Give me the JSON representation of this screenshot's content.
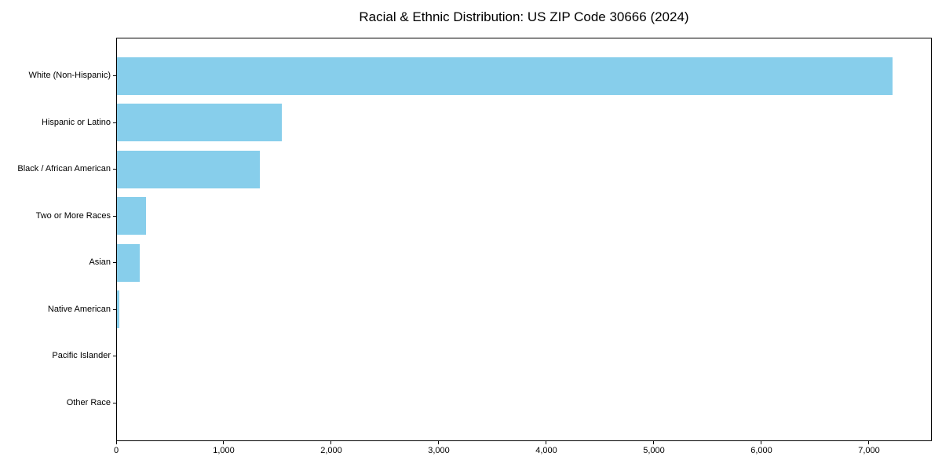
{
  "title": "Racial & Ethnic Distribution: US ZIP Code 30666 (2024)",
  "colors": {
    "bar": "#87CEEB",
    "background": "#FFFFFF",
    "spine": "#000000",
    "text": "#000000"
  },
  "chart_data": {
    "type": "bar",
    "orientation": "horizontal",
    "title": "Racial & Ethnic Distribution: US ZIP Code 30666 (2024)",
    "categories": [
      "White (Non-Hispanic)",
      "Hispanic or Latino",
      "Black / African American",
      "Two or More Races",
      "Asian",
      "Native American",
      "Pacific Islander",
      "Other Race"
    ],
    "values": [
      7210,
      1530,
      1325,
      273,
      214,
      25,
      0,
      0
    ],
    "xlabel": "",
    "ylabel": "",
    "xlim": [
      0,
      7584
    ],
    "x_ticks": [
      0,
      1000,
      2000,
      3000,
      4000,
      5000,
      6000,
      7000
    ],
    "x_tick_labels": [
      "0",
      "1,000",
      "2,000",
      "3,000",
      "4,000",
      "5,000",
      "6,000",
      "7,000"
    ],
    "bar_color": "#87CEEB",
    "grid": false,
    "legend": null
  }
}
